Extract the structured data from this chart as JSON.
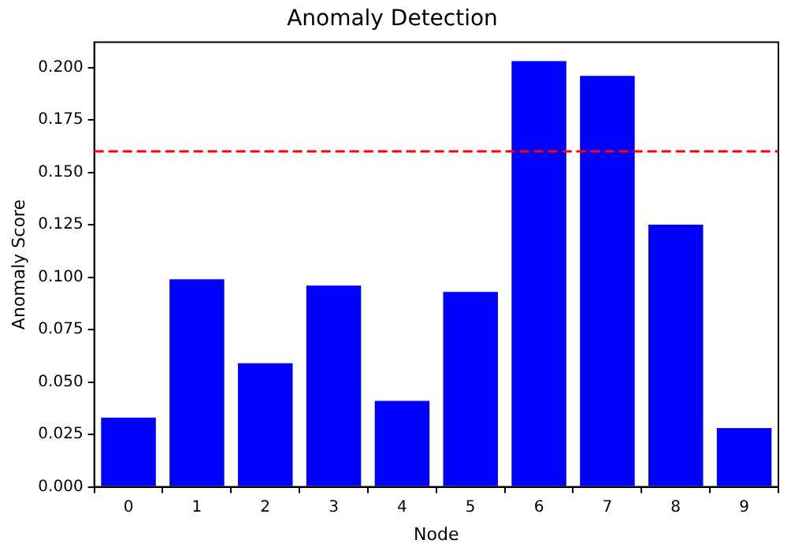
{
  "chart_data": {
    "type": "bar",
    "title": "Anomaly Detection",
    "xlabel": "Node",
    "ylabel": "Anomaly Score",
    "categories": [
      "0",
      "1",
      "2",
      "3",
      "4",
      "5",
      "6",
      "7",
      "8",
      "9"
    ],
    "values": [
      0.033,
      0.099,
      0.059,
      0.096,
      0.041,
      0.093,
      0.203,
      0.196,
      0.125,
      0.028
    ],
    "color": "#0000ff",
    "ylim": [
      0,
      0.212
    ],
    "yticks": [
      {
        "value": 0,
        "label": "0.000"
      },
      {
        "value": 0.025,
        "label": "0.025"
      },
      {
        "value": 0.05,
        "label": "0.050"
      },
      {
        "value": 0.075,
        "label": "0.075"
      },
      {
        "value": 0.1,
        "label": "0.100"
      },
      {
        "value": 0.125,
        "label": "0.125"
      },
      {
        "value": 0.15,
        "label": "0.150"
      },
      {
        "value": 0.175,
        "label": "0.175"
      },
      {
        "value": 0.2,
        "label": "0.200"
      }
    ],
    "ref_lines": [
      {
        "axis": "y",
        "value": 0.16,
        "color": "#ff0000",
        "line_style": "dashed"
      }
    ],
    "grid": false,
    "legend": false
  }
}
